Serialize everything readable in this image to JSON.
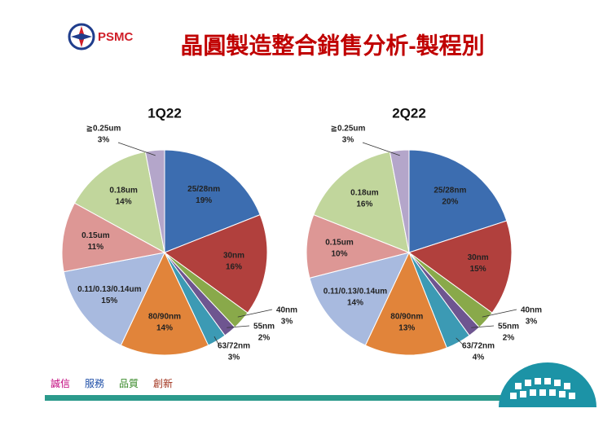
{
  "header": {
    "logo": "PSMC",
    "title": "晶圓製造整合銷售分析-製程別"
  },
  "footer": {
    "motto": [
      "誠信",
      "服務",
      "品質",
      "創新"
    ]
  },
  "chart_data": [
    {
      "type": "pie",
      "title": "1Q22",
      "categories": [
        "25/28nm",
        "30nm",
        "40nm",
        "55nm",
        "63/72nm",
        "80/90nm",
        "0.11/0.13/0.14um",
        "0.15um",
        "0.18um",
        "≧0.25um"
      ],
      "values": [
        19,
        16,
        3,
        2,
        3,
        14,
        15,
        11,
        14,
        3
      ],
      "value_labels": [
        "19%",
        "16%",
        "3%",
        "2%",
        "3%",
        "14%",
        "15%",
        "11%",
        "14%",
        "3%"
      ],
      "colors": [
        "#3c6db0",
        "#b1403d",
        "#89a94a",
        "#6e5590",
        "#3c9ab4",
        "#e1843a",
        "#a8badf",
        "#dd9795",
        "#c1d69c",
        "#b4a6ca"
      ]
    },
    {
      "type": "pie",
      "title": "2Q22",
      "categories": [
        "25/28nm",
        "30nm",
        "40nm",
        "55nm",
        "63/72nm",
        "80/90nm",
        "0.11/0.13/0.14um",
        "0.15um",
        "0.18um",
        "≧0.25um"
      ],
      "values": [
        20,
        15,
        3,
        2,
        4,
        13,
        14,
        10,
        16,
        3
      ],
      "value_labels": [
        "20%",
        "15%",
        "3%",
        "2%",
        "4%",
        "13%",
        "14%",
        "10%",
        "16%",
        "3%"
      ],
      "colors": [
        "#3c6db0",
        "#b1403d",
        "#89a94a",
        "#6e5590",
        "#3c9ab4",
        "#e1843a",
        "#a8badf",
        "#dd9795",
        "#c1d69c",
        "#b4a6ca"
      ]
    }
  ]
}
